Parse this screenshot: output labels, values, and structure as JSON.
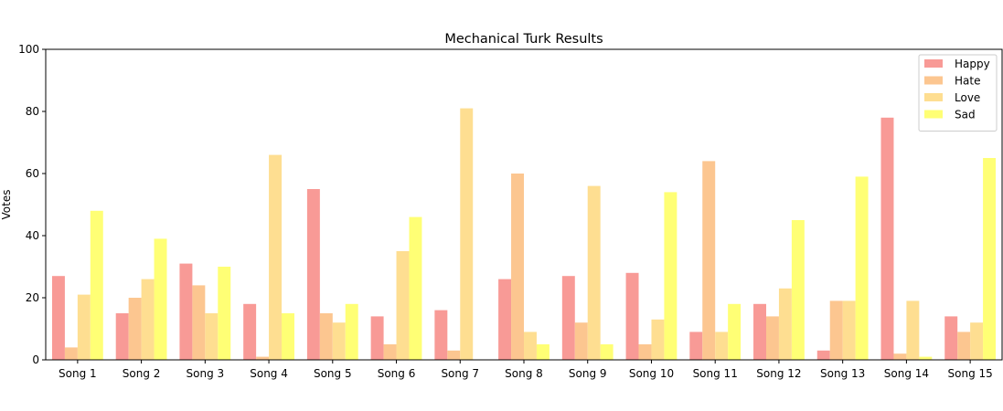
{
  "chart_data": {
    "type": "bar",
    "title": "Mechanical Turk Results",
    "xlabel": "",
    "ylabel": "Votes",
    "ylim": [
      0,
      100
    ],
    "yticks": [
      0,
      20,
      40,
      60,
      80,
      100
    ],
    "legend_position": "top-right",
    "grid": false,
    "categories": [
      "Song 1",
      "Song 2",
      "Song 3",
      "Song 4",
      "Song 5",
      "Song 6",
      "Song 7",
      "Song 8",
      "Song 9",
      "Song 10",
      "Song 11",
      "Song 12",
      "Song 13",
      "Song 14",
      "Song 15"
    ],
    "series": [
      {
        "name": "Happy",
        "color": "#f89a96",
        "values": [
          27,
          15,
          31,
          18,
          55,
          14,
          16,
          26,
          27,
          28,
          9,
          18,
          3,
          78,
          14
        ]
      },
      {
        "name": "Hate",
        "color": "#fcc690",
        "values": [
          4,
          20,
          24,
          1,
          15,
          5,
          3,
          60,
          12,
          5,
          64,
          14,
          19,
          2,
          9
        ]
      },
      {
        "name": "Love",
        "color": "#fede91",
        "values": [
          21,
          26,
          15,
          66,
          12,
          35,
          81,
          9,
          56,
          13,
          9,
          23,
          19,
          19,
          12
        ]
      },
      {
        "name": "Sad",
        "color": "#ffff75",
        "values": [
          48,
          39,
          30,
          15,
          18,
          46,
          0,
          5,
          5,
          54,
          18,
          45,
          59,
          1,
          65
        ]
      }
    ]
  }
}
